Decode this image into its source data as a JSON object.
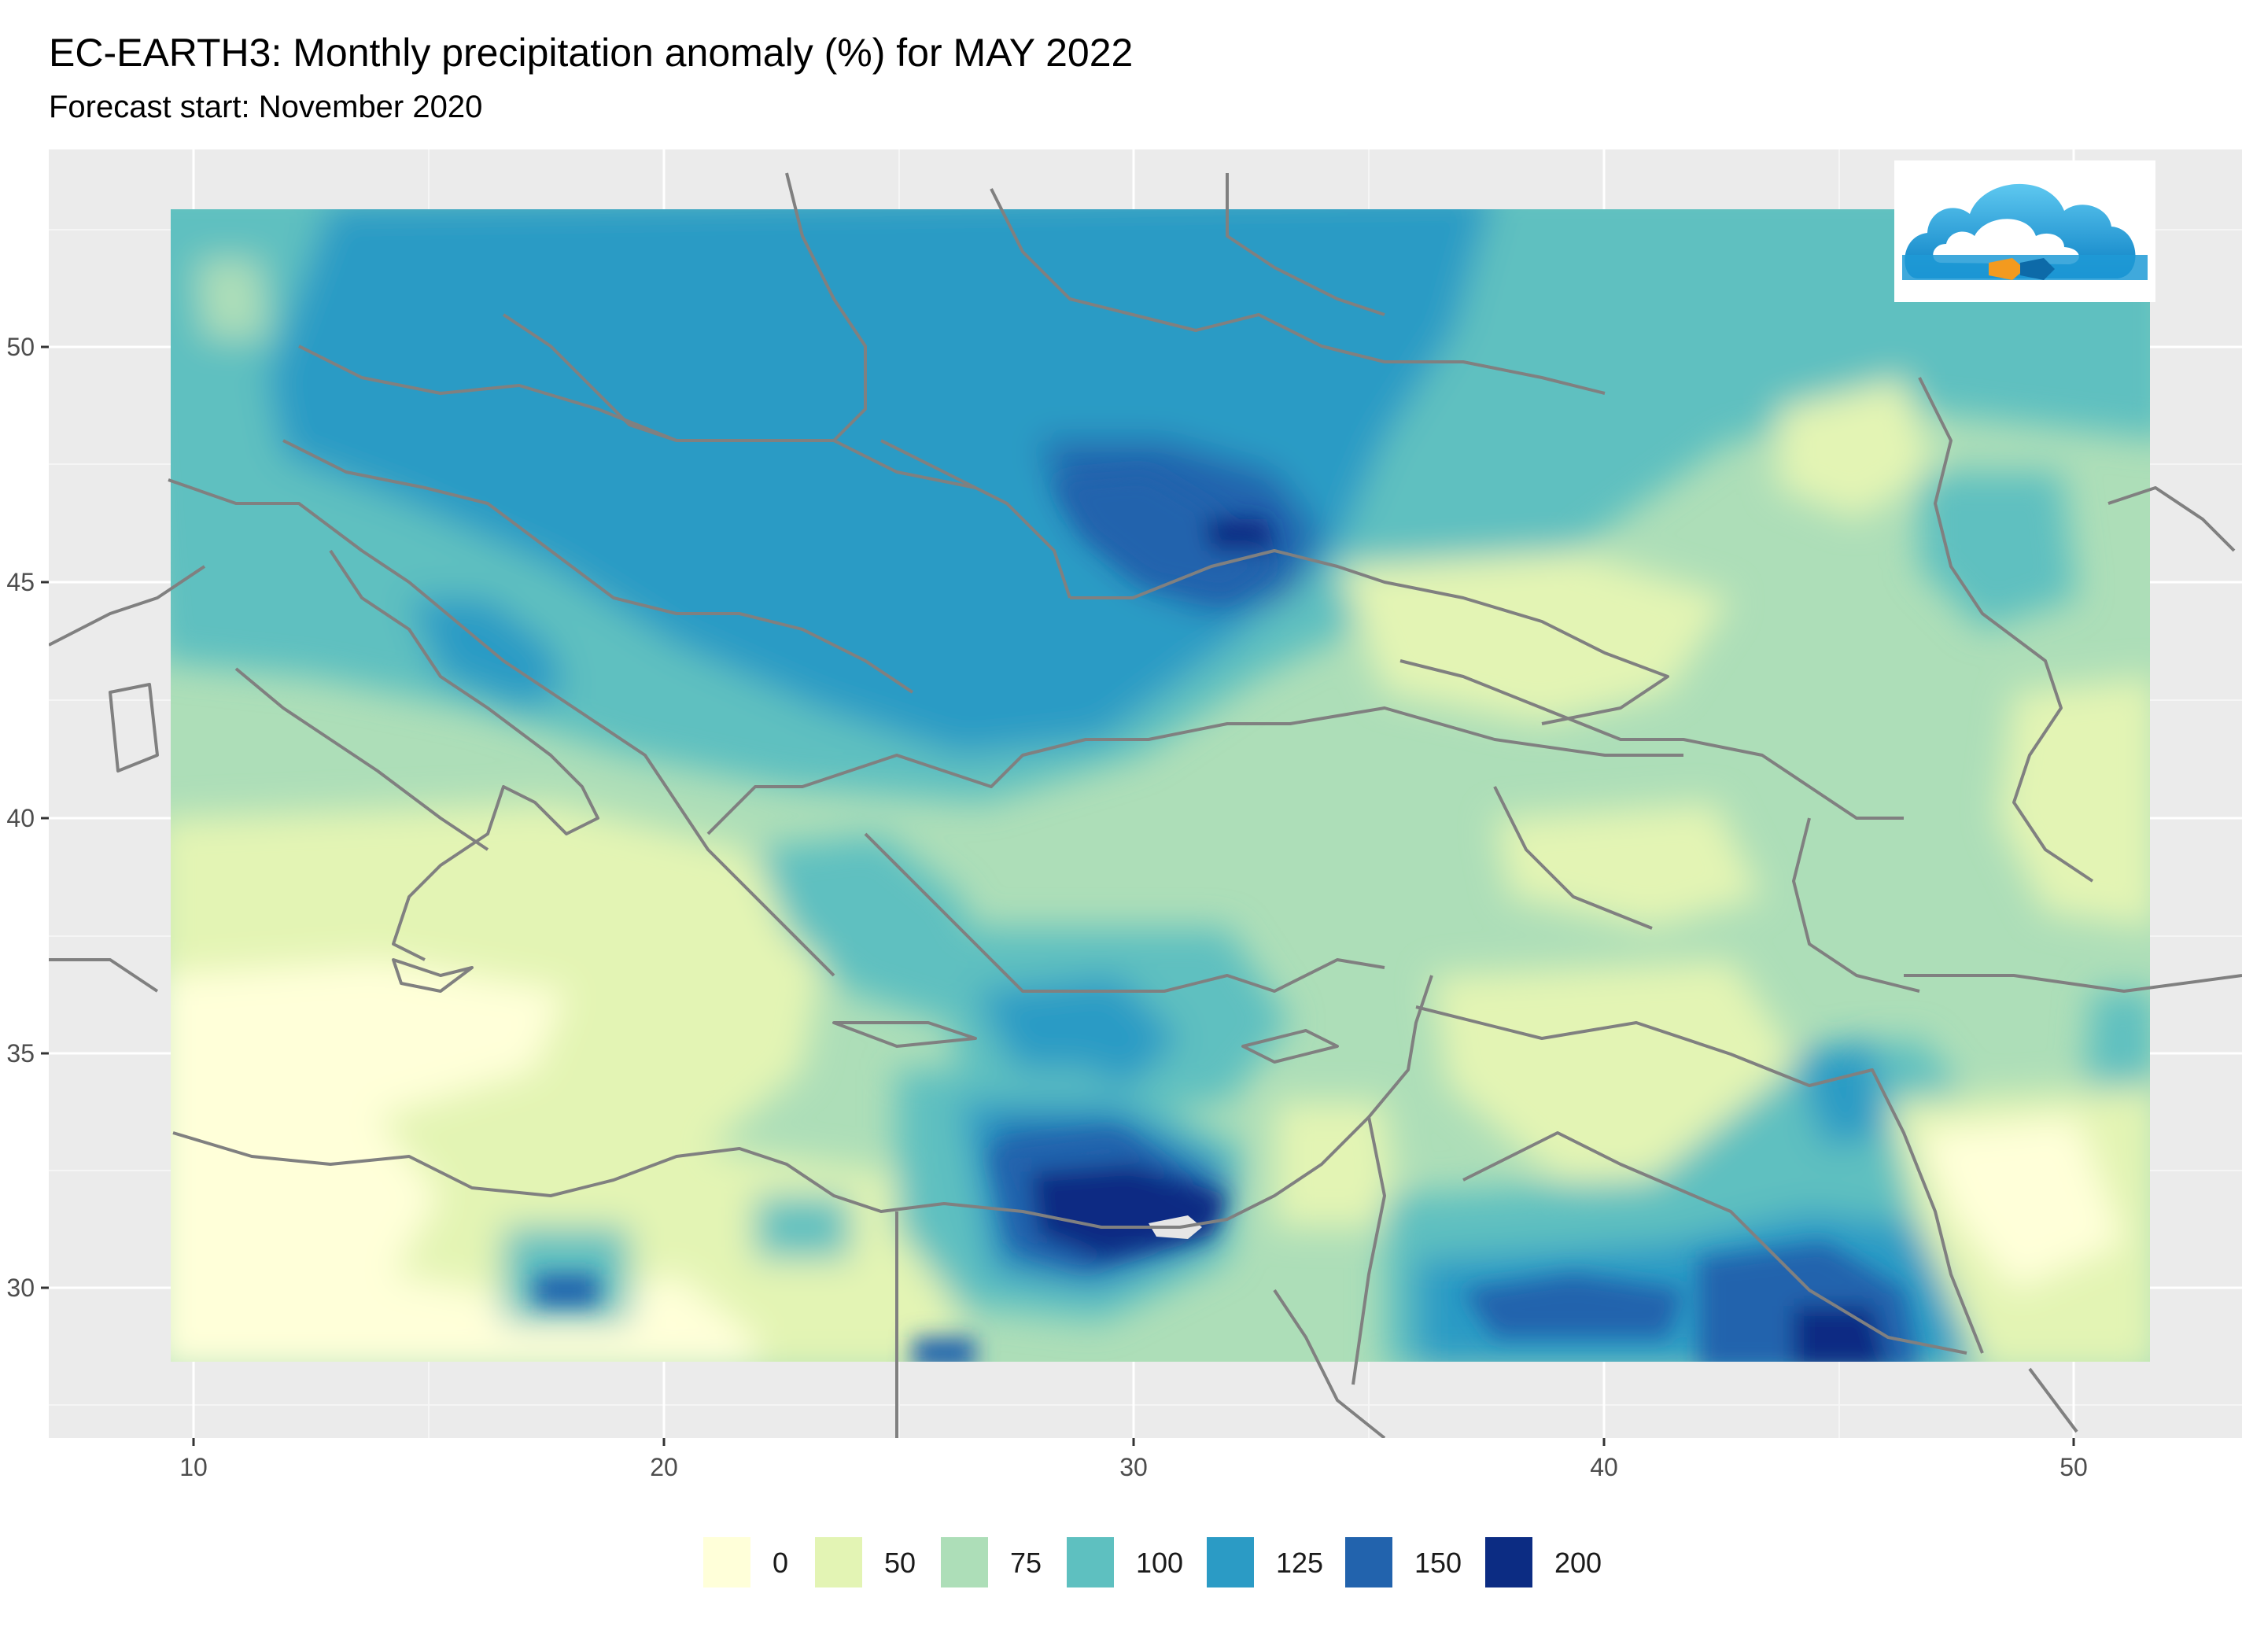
{
  "title": "EC-EARTH3: Monthly precipitation anomaly (%) for MAY 2022",
  "subtitle": "Forecast start: November 2020",
  "axes": {
    "x_ticks": [
      "10",
      "20",
      "30",
      "40",
      "50"
    ],
    "y_ticks": [
      "30",
      "35",
      "40",
      "45",
      "50"
    ]
  },
  "legend": {
    "items": [
      {
        "label": "0",
        "color": "#ffffd9"
      },
      {
        "label": "50",
        "color": "#e3f4b4"
      },
      {
        "label": "75",
        "color": "#addeb8"
      },
      {
        "label": "100",
        "color": "#5ec0c0"
      },
      {
        "label": "125",
        "color": "#2b9bc5"
      },
      {
        "label": "150",
        "color": "#2263ad"
      },
      {
        "label": "200",
        "color": "#0c2c83"
      }
    ]
  },
  "colors": {
    "panel_background": "#ebebeb",
    "gridline": "#ffffff",
    "border_line": "#808080"
  },
  "logo": {
    "icon": "cloud-logo-icon"
  }
}
